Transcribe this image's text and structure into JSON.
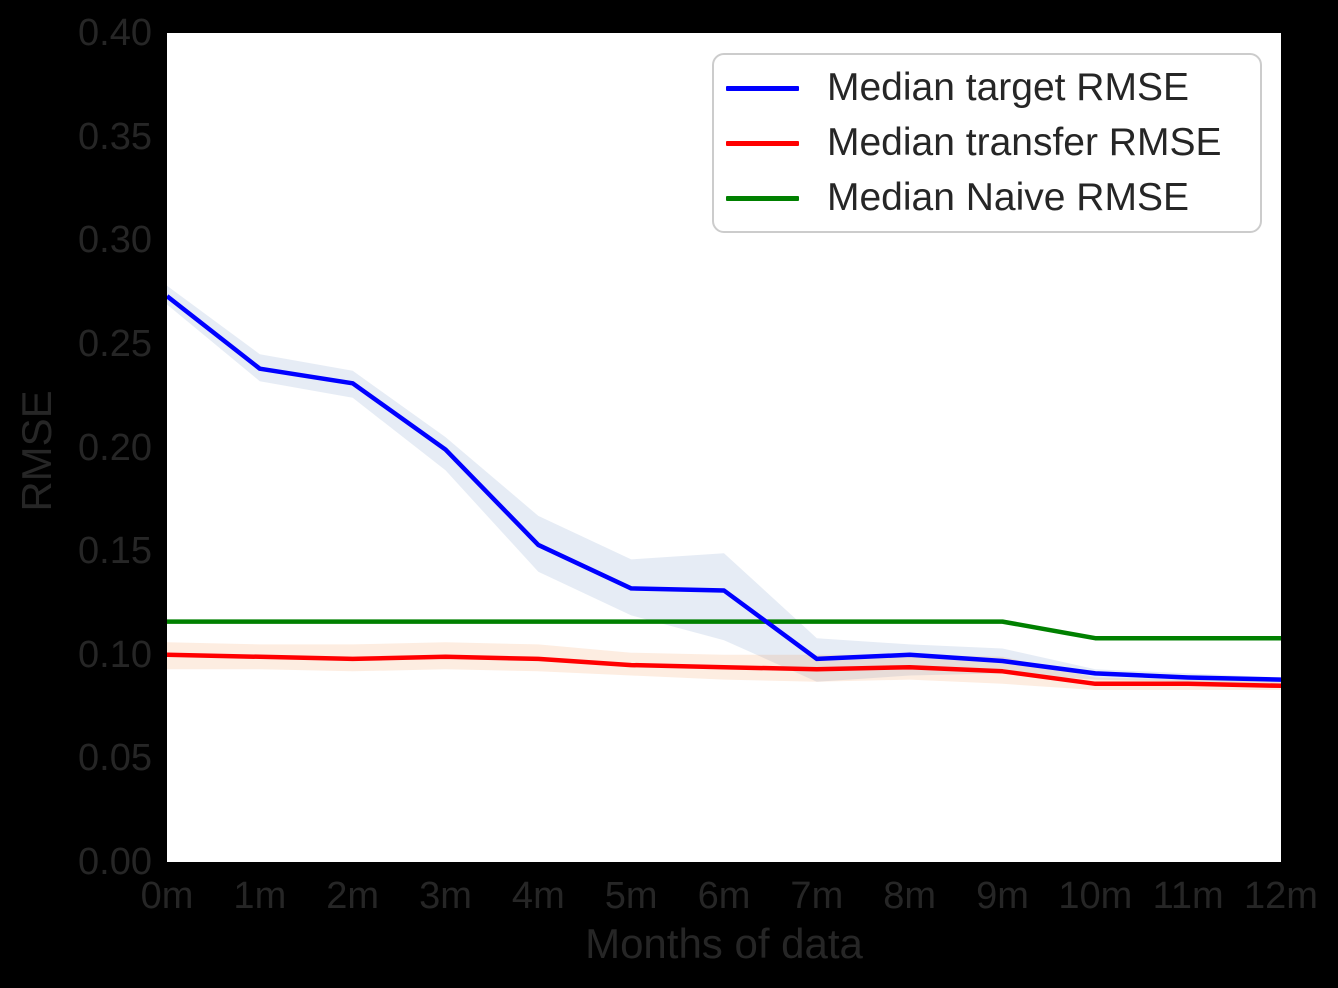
{
  "figure": {
    "background": "#000000",
    "plot_background": "#ffffff",
    "text_color": "#262626",
    "legend_border_color": "#cccccc"
  },
  "chart_data": {
    "type": "line",
    "title": "",
    "xlabel": "Months of data",
    "ylabel": "RMSE",
    "xlim": [
      0,
      12
    ],
    "ylim": [
      0.0,
      0.4
    ],
    "grid": false,
    "legend_position": "upper right",
    "x": [
      0,
      1,
      2,
      3,
      4,
      5,
      6,
      7,
      8,
      9,
      10,
      11,
      12
    ],
    "x_tick_labels": [
      "0m",
      "1m",
      "2m",
      "3m",
      "4m",
      "5m",
      "6m",
      "7m",
      "8m",
      "9m",
      "10m",
      "11m",
      "12m"
    ],
    "y_ticks": [
      0.0,
      0.05,
      0.1,
      0.15,
      0.2,
      0.25,
      0.3,
      0.35,
      0.4
    ],
    "y_tick_labels": [
      "0.00",
      "0.05",
      "0.10",
      "0.15",
      "0.20",
      "0.25",
      "0.30",
      "0.35",
      "0.40"
    ],
    "series": [
      {
        "name": "Median target RMSE",
        "color": "#0000ff",
        "values": [
          0.273,
          0.238,
          0.231,
          0.199,
          0.153,
          0.132,
          0.131,
          0.098,
          0.1,
          0.097,
          0.091,
          0.089,
          0.088
        ],
        "band_upper": [
          0.278,
          0.245,
          0.237,
          0.205,
          0.167,
          0.146,
          0.149,
          0.108,
          0.105,
          0.103,
          0.093,
          0.091,
          0.089
        ],
        "band_lower": [
          0.269,
          0.232,
          0.224,
          0.189,
          0.14,
          0.119,
          0.107,
          0.087,
          0.09,
          0.091,
          0.088,
          0.087,
          0.086
        ],
        "band_color": "#3a6fb0",
        "band_opacity": 0.13
      },
      {
        "name": "Median transfer RMSE",
        "color": "#ff0000",
        "values": [
          0.1,
          0.099,
          0.098,
          0.099,
          0.098,
          0.095,
          0.094,
          0.093,
          0.094,
          0.092,
          0.086,
          0.086,
          0.085
        ],
        "band_upper": [
          0.106,
          0.105,
          0.105,
          0.106,
          0.105,
          0.101,
          0.1,
          0.1,
          0.1,
          0.099,
          0.089,
          0.088,
          0.087
        ],
        "band_lower": [
          0.093,
          0.093,
          0.092,
          0.093,
          0.092,
          0.09,
          0.088,
          0.087,
          0.088,
          0.086,
          0.083,
          0.083,
          0.083
        ],
        "band_color": "#ee7116",
        "band_opacity": 0.13
      },
      {
        "name": "Median Naive RMSE",
        "color": "#008000",
        "values": [
          0.116,
          0.116,
          0.116,
          0.116,
          0.116,
          0.116,
          0.116,
          0.116,
          0.116,
          0.116,
          0.108,
          0.108,
          0.108
        ]
      }
    ]
  }
}
